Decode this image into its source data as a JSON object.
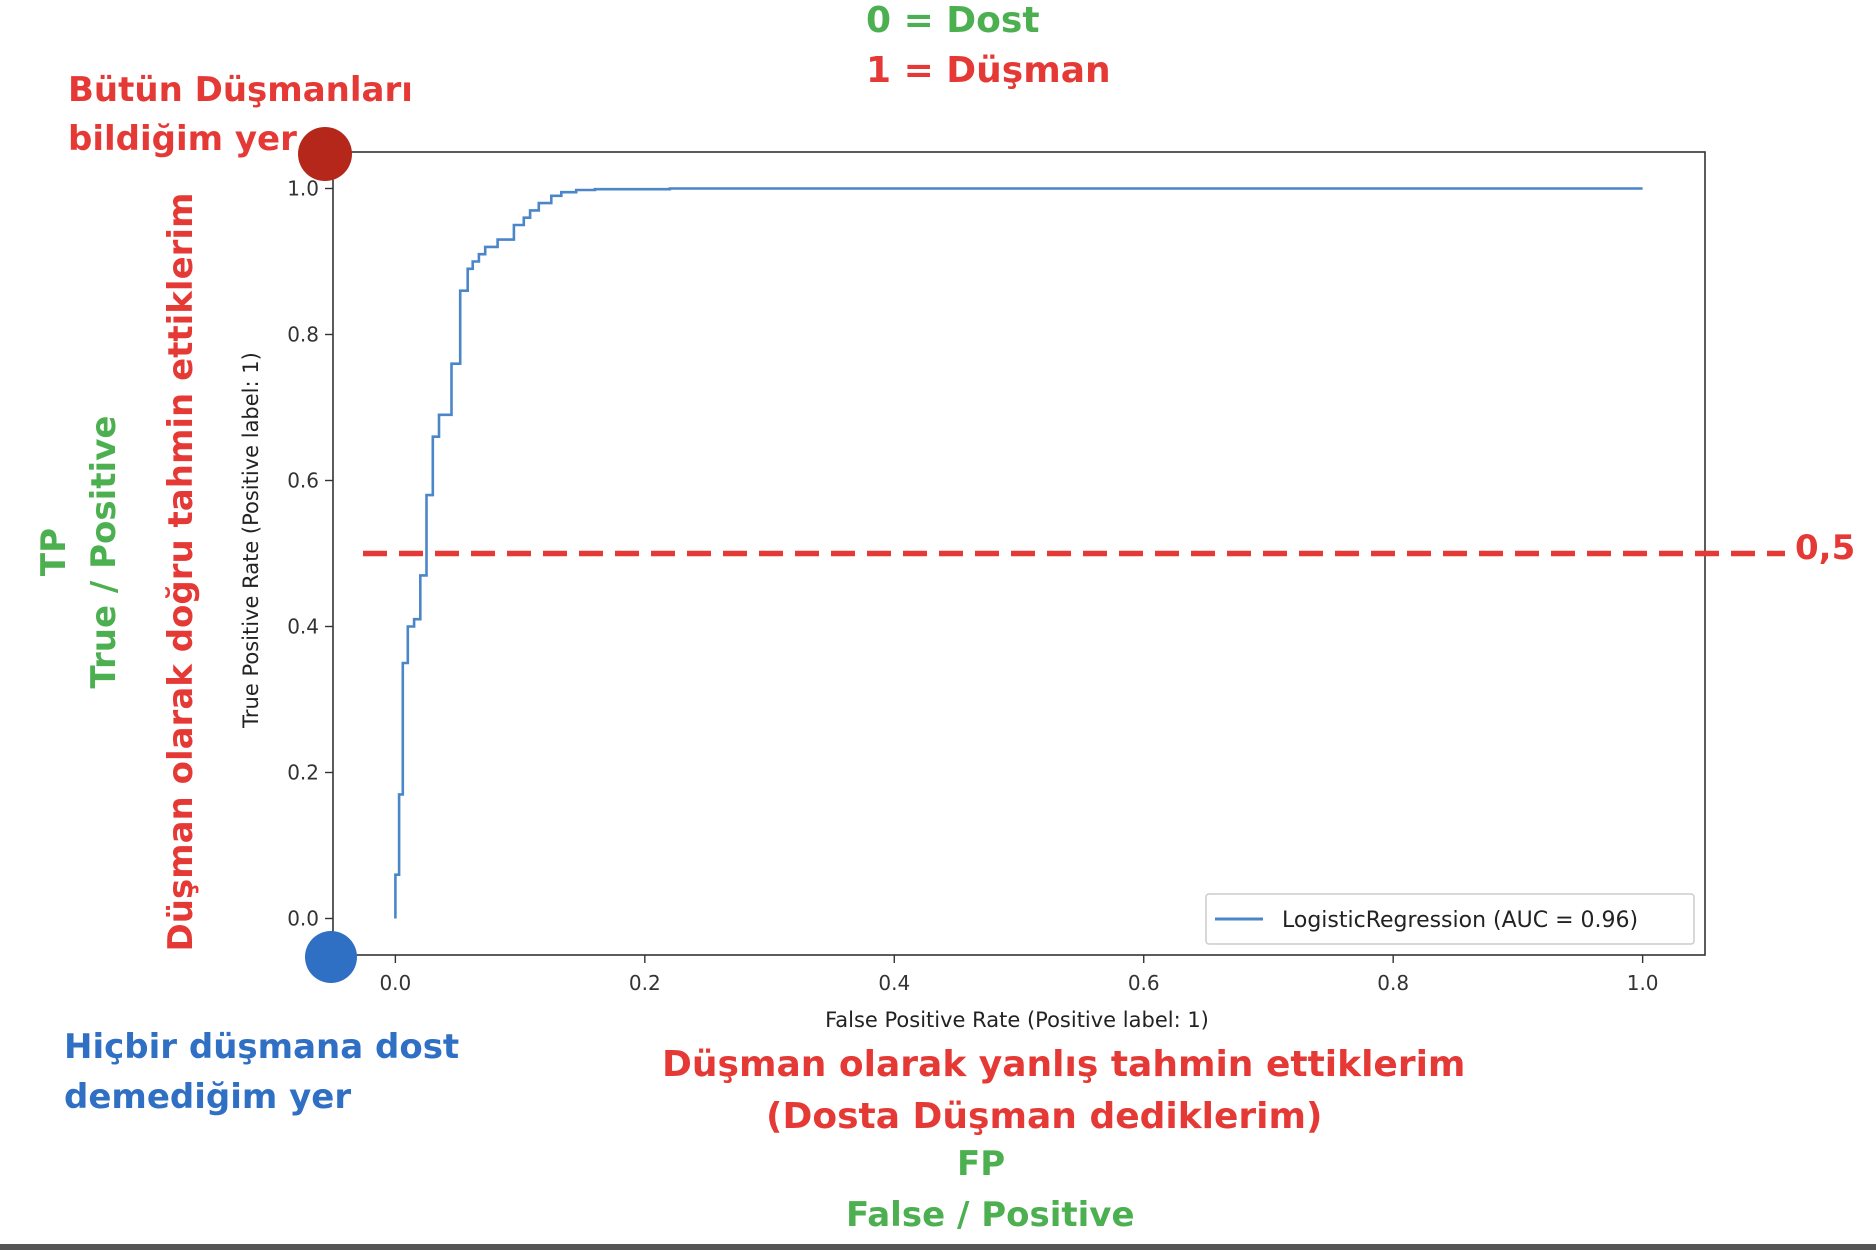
{
  "annotations": {
    "legend_dost": "0 = Dost",
    "legend_dusman": "1 = Düşman",
    "top_corner_line1": "Bütün Düşmanları",
    "top_corner_line2": "bildiğim yer",
    "y_side_red": "Düşman olarak doğru tahmin ettiklerim",
    "y_side_tp": "TP",
    "y_side_tp_full": "True / Positive",
    "threshold_label": "0,5",
    "bottom_corner_line1": "Hiçbir düşmana dost",
    "bottom_corner_line2": "demediğim yer",
    "x_side_red_line1": "Düşman olarak yanlış tahmin ettiklerim",
    "x_side_red_line2": "(Dosta Düşman dediklerim)",
    "x_side_fp": "FP",
    "x_side_fp_full": "False / Positive"
  },
  "colors": {
    "green": "#4caf50",
    "red": "#e53935",
    "blue": "#2f6fc4",
    "curve": "#4a86c8",
    "top_marker": "#b5261b",
    "bottom_marker": "#2f6fc4"
  },
  "chart_data": {
    "type": "line",
    "title": "",
    "xlabel": "False Positive Rate (Positive label: 1)",
    "ylabel": "True Positive Rate (Positive label: 1)",
    "xlim": [
      -0.05,
      1.05
    ],
    "ylim": [
      -0.05,
      1.05
    ],
    "xticks": [
      0.0,
      0.2,
      0.4,
      0.6,
      0.8,
      1.0
    ],
    "yticks": [
      0.0,
      0.2,
      0.4,
      0.6,
      0.8,
      1.0
    ],
    "xtick_labels": [
      "0.0",
      "0.2",
      "0.4",
      "0.6",
      "0.8",
      "1.0"
    ],
    "ytick_labels": [
      "0.0",
      "0.2",
      "0.4",
      "0.6",
      "0.8",
      "1.0"
    ],
    "grid": false,
    "legend": "lower-right",
    "threshold": 0.5,
    "series": [
      {
        "name": "LogisticRegression (AUC = 0.96)",
        "x": [
          0.0,
          0.0,
          0.003,
          0.003,
          0.006,
          0.006,
          0.01,
          0.01,
          0.015,
          0.015,
          0.02,
          0.02,
          0.025,
          0.025,
          0.03,
          0.03,
          0.035,
          0.035,
          0.045,
          0.045,
          0.052,
          0.052,
          0.058,
          0.058,
          0.062,
          0.062,
          0.067,
          0.067,
          0.072,
          0.072,
          0.082,
          0.082,
          0.095,
          0.095,
          0.103,
          0.103,
          0.108,
          0.108,
          0.115,
          0.115,
          0.125,
          0.125,
          0.133,
          0.133,
          0.145,
          0.145,
          0.16,
          0.16,
          0.22,
          0.22,
          0.37,
          0.37,
          1.0
        ],
        "y": [
          0.0,
          0.06,
          0.06,
          0.17,
          0.17,
          0.35,
          0.35,
          0.4,
          0.4,
          0.41,
          0.41,
          0.47,
          0.47,
          0.58,
          0.58,
          0.66,
          0.66,
          0.69,
          0.69,
          0.76,
          0.76,
          0.86,
          0.86,
          0.89,
          0.89,
          0.9,
          0.9,
          0.91,
          0.91,
          0.92,
          0.92,
          0.93,
          0.93,
          0.95,
          0.95,
          0.96,
          0.96,
          0.97,
          0.97,
          0.98,
          0.98,
          0.99,
          0.99,
          0.995,
          0.995,
          0.998,
          0.998,
          0.999,
          0.999,
          1.0,
          1.0,
          1.0,
          1.0
        ]
      }
    ]
  }
}
